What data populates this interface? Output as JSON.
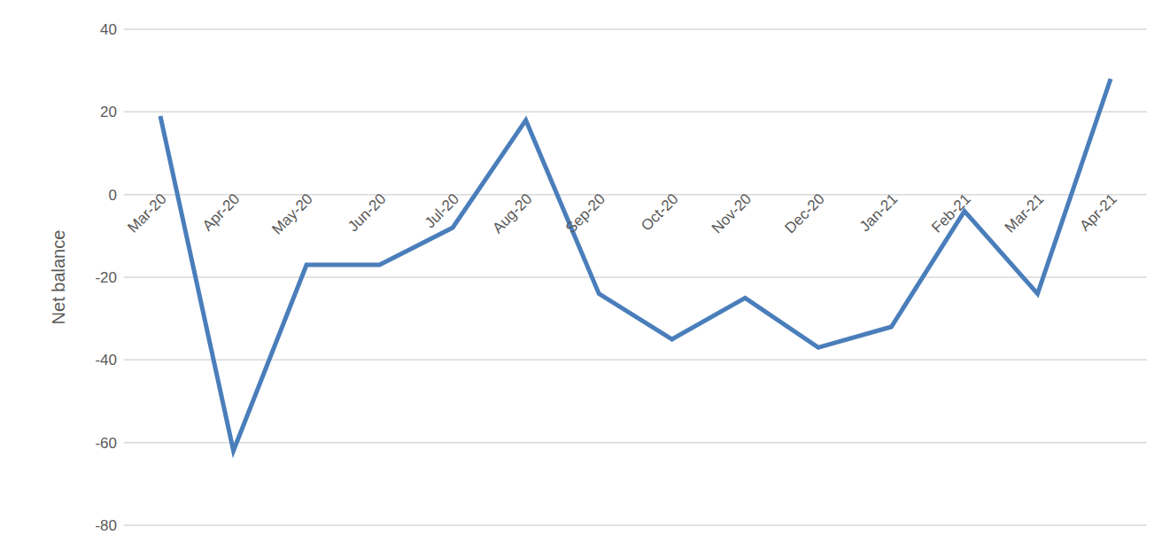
{
  "chart_data": {
    "type": "line",
    "y_label": "Net balance",
    "categories": [
      "Mar-20",
      "Apr-20",
      "May-20",
      "Jun-20",
      "Jul-20",
      "Aug-20",
      "Sep-20",
      "Oct-20",
      "Nov-20",
      "Dec-20",
      "Jan-21",
      "Feb-21",
      "Mar-21",
      "Apr-21"
    ],
    "values": [
      19,
      -62,
      -17,
      -17,
      -8,
      18,
      -24,
      -35,
      -25,
      -37,
      -32,
      -4,
      -24,
      28
    ],
    "color": "#4a7ebb",
    "ylim": [
      -80,
      40
    ],
    "yticks": [
      -80,
      -60,
      -40,
      -20,
      0,
      20,
      40
    ],
    "grid": true
  }
}
